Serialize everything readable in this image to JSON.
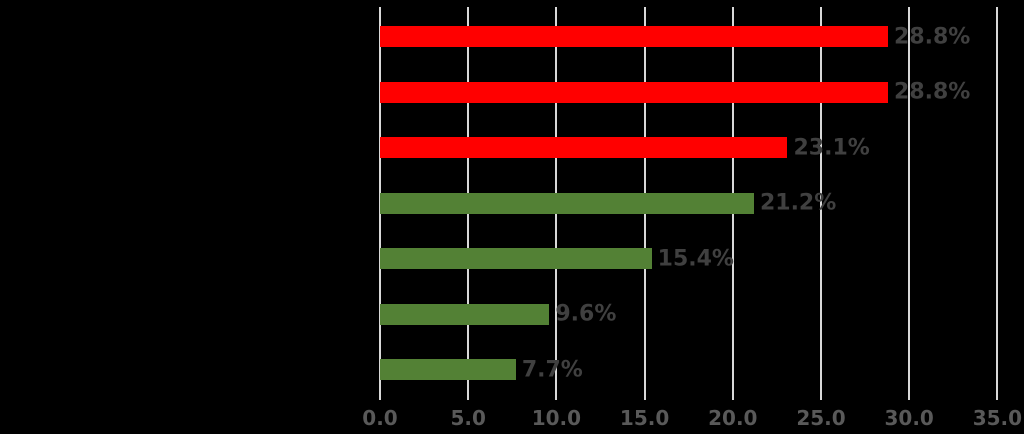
{
  "chart_data": {
    "type": "bar",
    "orientation": "horizontal",
    "title": "",
    "categories": [
      "",
      "",
      "",
      "",
      "",
      "",
      ""
    ],
    "values": [
      28.8,
      28.8,
      23.1,
      21.2,
      15.4,
      9.6,
      7.7
    ],
    "data_labels": [
      "28.8%",
      "28.8%",
      "23.1%",
      "21.2%",
      "15.4%",
      "9.6%",
      "7.7%"
    ],
    "bar_colors": [
      "#ff0000",
      "#ff0000",
      "#ff0000",
      "#538135",
      "#538135",
      "#538135",
      "#538135"
    ],
    "data_label_position": "outside-end",
    "x_ticks": [
      "0.0",
      "5.0",
      "10.0",
      "15.0",
      "20.0",
      "25.0",
      "30.0",
      "35.0"
    ],
    "x_tick_values": [
      0,
      5,
      10,
      15,
      20,
      25,
      30,
      35
    ],
    "xlim": [
      0,
      35
    ],
    "grid": true,
    "legend": "none",
    "colors": {
      "bar_red": "#ff0000",
      "bar_green": "#538135",
      "gridline": "#d9d9d9",
      "tick_label": "#595959",
      "data_label": "#404040",
      "background": "#000000"
    }
  }
}
